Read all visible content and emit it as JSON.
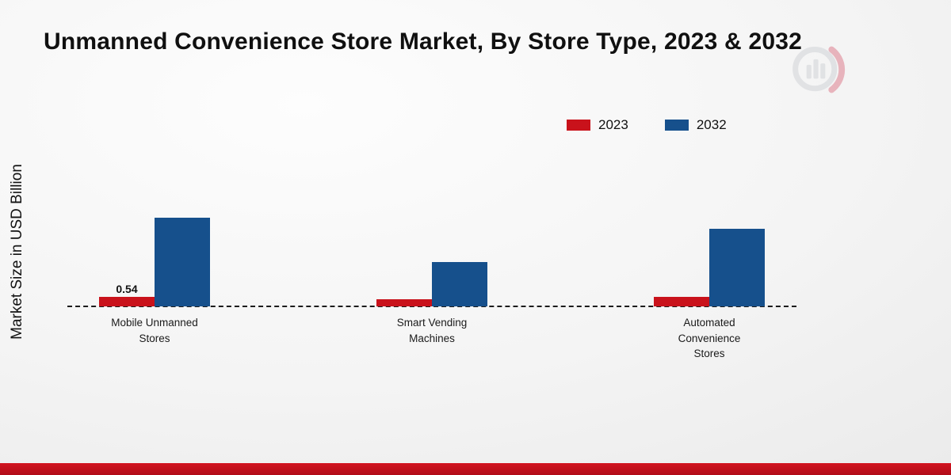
{
  "title": "Unmanned Convenience Store Market, By Store Type, 2023 & 2032",
  "y_axis_label": "Market Size in USD Billion",
  "colors": {
    "series_2023": "#c9121b",
    "series_2032": "#16508c",
    "footer_accent": "#c10d1d"
  },
  "chart_data": {
    "type": "bar",
    "title": "Unmanned Convenience Store Market, By Store Type, 2023 & 2032",
    "xlabel": "",
    "ylabel": "Market Size in USD Billion",
    "categories": [
      "Mobile Unmanned Stores",
      "Smart Vending Machines",
      "Automated Convenience Stores"
    ],
    "series": [
      {
        "name": "2023",
        "color": "#c9121b",
        "values": [
          0.54,
          0.42,
          0.55
        ]
      },
      {
        "name": "2032",
        "color": "#16508c",
        "values": [
          5.0,
          2.5,
          4.4
        ]
      }
    ],
    "data_labels": [
      {
        "series": "2023",
        "category_index": 0,
        "text": "0.54"
      }
    ],
    "ylim": [
      0,
      10.5
    ],
    "grid": false,
    "baseline_style": "dashed",
    "legend_position": "top-right"
  }
}
